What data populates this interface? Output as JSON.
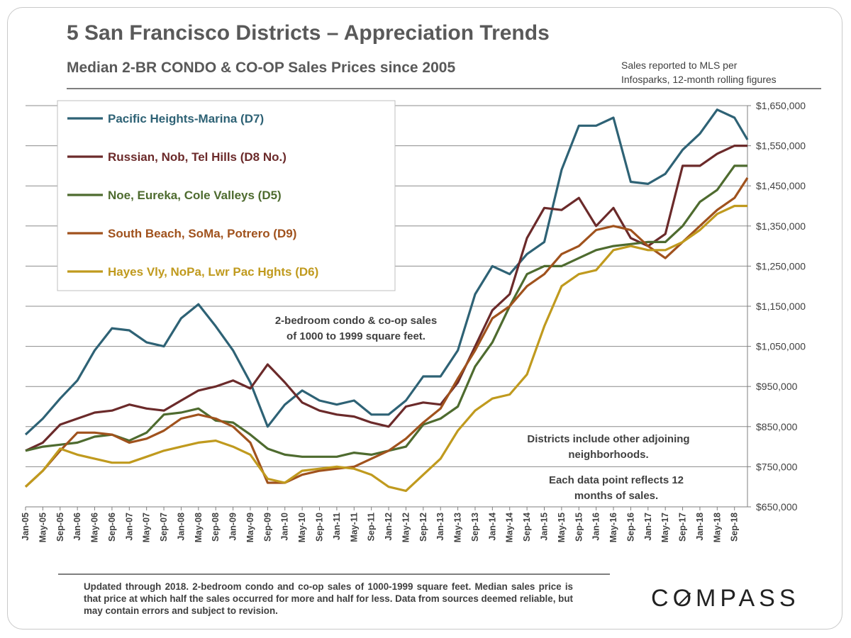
{
  "header": {
    "title": "5 San Francisco Districts – Appreciation Trends",
    "subtitle": "Median 2-BR CONDO & CO-OP Sales Prices since 2005",
    "source_line1": "Sales reported to MLS per",
    "source_line2": "Infosparks, 12-month rolling figures"
  },
  "annotations": {
    "size_note_line1": "2-bedroom condo & co-op sales",
    "size_note_line2": "of 1000 to 1999 square feet.",
    "districts_note_line1": "Districts include other adjoining",
    "districts_note_line2": "neighborhoods.",
    "datapoint_note_line1": "Each data point reflects 12",
    "datapoint_note_line2": "months of sales."
  },
  "footer": {
    "note": "Updated through 2018. 2-bedroom condo and co-op sales of 1000-1999 square feet. Median sales price is that price at which half the sales occurred for more and half for less. Data from sources deemed reliable, but may contain errors and subject to revision.",
    "logo": "COMPASS"
  },
  "chart_data": {
    "type": "line",
    "xlabel": "",
    "ylabel": "",
    "ylim": [
      650000,
      1650000
    ],
    "yticks": [
      650000,
      750000,
      850000,
      950000,
      1050000,
      1150000,
      1250000,
      1350000,
      1450000,
      1550000,
      1650000
    ],
    "ytick_labels": [
      "$650,000",
      "$750,000",
      "$850,000",
      "$950,000",
      "$1,050,000",
      "$1,150,000",
      "$1,250,000",
      "$1,350,000",
      "$1,450,000",
      "$1,550,000",
      "$1,650,000"
    ],
    "x_range": [
      "2005-01",
      "2018-12"
    ],
    "xtick_labels": [
      "Jan-05",
      "May-05",
      "Sep-05",
      "Jan-06",
      "May-06",
      "Sep-06",
      "Jan-07",
      "May-07",
      "Sep-07",
      "Jan-08",
      "May-08",
      "Sep-08",
      "Jan-09",
      "May-09",
      "Sep-09",
      "Jan-10",
      "May-10",
      "Sep-10",
      "Jan-11",
      "May-11",
      "Sep-11",
      "Jan-12",
      "May-12",
      "Sep-12",
      "Jan-13",
      "May-13",
      "Sep-13",
      "Jan-14",
      "May-14",
      "Sep-14",
      "Jan-15",
      "May-15",
      "Sep-15",
      "Jan-16",
      "May-16",
      "Sep-16",
      "Jan-17",
      "May-17",
      "Sep-17",
      "Jan-18",
      "May-18",
      "Sep-18"
    ],
    "grid": true,
    "legend_position": "top-left",
    "series": [
      {
        "name": "Pacific Heights-Marina (D7)",
        "color": "#2e6275",
        "points": [
          [
            "2005-01",
            830000
          ],
          [
            "2005-05",
            870000
          ],
          [
            "2005-09",
            920000
          ],
          [
            "2006-01",
            965000
          ],
          [
            "2006-05",
            1040000
          ],
          [
            "2006-09",
            1095000
          ],
          [
            "2007-01",
            1090000
          ],
          [
            "2007-05",
            1060000
          ],
          [
            "2007-09",
            1050000
          ],
          [
            "2008-01",
            1120000
          ],
          [
            "2008-05",
            1155000
          ],
          [
            "2008-09",
            1100000
          ],
          [
            "2009-01",
            1040000
          ],
          [
            "2009-05",
            960000
          ],
          [
            "2009-09",
            850000
          ],
          [
            "2010-01",
            905000
          ],
          [
            "2010-05",
            940000
          ],
          [
            "2010-09",
            915000
          ],
          [
            "2011-01",
            905000
          ],
          [
            "2011-05",
            915000
          ],
          [
            "2011-09",
            880000
          ],
          [
            "2012-01",
            880000
          ],
          [
            "2012-05",
            915000
          ],
          [
            "2012-09",
            975000
          ],
          [
            "2013-01",
            975000
          ],
          [
            "2013-05",
            1040000
          ],
          [
            "2013-09",
            1180000
          ],
          [
            "2014-01",
            1250000
          ],
          [
            "2014-05",
            1230000
          ],
          [
            "2014-09",
            1280000
          ],
          [
            "2015-01",
            1310000
          ],
          [
            "2015-05",
            1490000
          ],
          [
            "2015-09",
            1600000
          ],
          [
            "2016-01",
            1600000
          ],
          [
            "2016-05",
            1620000
          ],
          [
            "2016-09",
            1460000
          ],
          [
            "2017-01",
            1455000
          ],
          [
            "2017-05",
            1480000
          ],
          [
            "2017-09",
            1540000
          ],
          [
            "2018-01",
            1580000
          ],
          [
            "2018-05",
            1640000
          ],
          [
            "2018-09",
            1620000
          ],
          [
            "2018-12",
            1565000
          ]
        ]
      },
      {
        "name": "Russian, Nob, Tel Hills (D8 No.)",
        "color": "#6b2a2a",
        "points": [
          [
            "2005-01",
            790000
          ],
          [
            "2005-05",
            810000
          ],
          [
            "2005-09",
            855000
          ],
          [
            "2006-01",
            870000
          ],
          [
            "2006-05",
            885000
          ],
          [
            "2006-09",
            890000
          ],
          [
            "2007-01",
            905000
          ],
          [
            "2007-05",
            895000
          ],
          [
            "2007-09",
            890000
          ],
          [
            "2008-01",
            915000
          ],
          [
            "2008-05",
            940000
          ],
          [
            "2008-09",
            950000
          ],
          [
            "2009-01",
            965000
          ],
          [
            "2009-05",
            945000
          ],
          [
            "2009-09",
            1005000
          ],
          [
            "2010-01",
            960000
          ],
          [
            "2010-05",
            910000
          ],
          [
            "2010-09",
            890000
          ],
          [
            "2011-01",
            880000
          ],
          [
            "2011-05",
            875000
          ],
          [
            "2011-09",
            860000
          ],
          [
            "2012-01",
            850000
          ],
          [
            "2012-05",
            900000
          ],
          [
            "2012-09",
            910000
          ],
          [
            "2013-01",
            905000
          ],
          [
            "2013-05",
            960000
          ],
          [
            "2013-09",
            1050000
          ],
          [
            "2014-01",
            1140000
          ],
          [
            "2014-05",
            1180000
          ],
          [
            "2014-09",
            1320000
          ],
          [
            "2015-01",
            1395000
          ],
          [
            "2015-05",
            1390000
          ],
          [
            "2015-09",
            1420000
          ],
          [
            "2016-01",
            1350000
          ],
          [
            "2016-05",
            1395000
          ],
          [
            "2016-09",
            1320000
          ],
          [
            "2017-01",
            1300000
          ],
          [
            "2017-05",
            1330000
          ],
          [
            "2017-09",
            1500000
          ],
          [
            "2018-01",
            1500000
          ],
          [
            "2018-05",
            1530000
          ],
          [
            "2018-09",
            1550000
          ],
          [
            "2018-12",
            1550000
          ]
        ]
      },
      {
        "name": "Noe, Eureka, Cole Valleys (D5)",
        "color": "#4e6b2f",
        "points": [
          [
            "2005-01",
            790000
          ],
          [
            "2005-05",
            800000
          ],
          [
            "2005-09",
            805000
          ],
          [
            "2006-01",
            810000
          ],
          [
            "2006-05",
            825000
          ],
          [
            "2006-09",
            830000
          ],
          [
            "2007-01",
            815000
          ],
          [
            "2007-05",
            835000
          ],
          [
            "2007-09",
            880000
          ],
          [
            "2008-01",
            885000
          ],
          [
            "2008-05",
            895000
          ],
          [
            "2008-09",
            865000
          ],
          [
            "2009-01",
            860000
          ],
          [
            "2009-05",
            830000
          ],
          [
            "2009-09",
            795000
          ],
          [
            "2010-01",
            780000
          ],
          [
            "2010-05",
            775000
          ],
          [
            "2010-09",
            775000
          ],
          [
            "2011-01",
            775000
          ],
          [
            "2011-05",
            785000
          ],
          [
            "2011-09",
            780000
          ],
          [
            "2012-01",
            790000
          ],
          [
            "2012-05",
            800000
          ],
          [
            "2012-09",
            855000
          ],
          [
            "2013-01",
            870000
          ],
          [
            "2013-05",
            900000
          ],
          [
            "2013-09",
            1000000
          ],
          [
            "2014-01",
            1060000
          ],
          [
            "2014-05",
            1150000
          ],
          [
            "2014-09",
            1230000
          ],
          [
            "2015-01",
            1250000
          ],
          [
            "2015-05",
            1250000
          ],
          [
            "2015-09",
            1270000
          ],
          [
            "2016-01",
            1290000
          ],
          [
            "2016-05",
            1300000
          ],
          [
            "2016-09",
            1305000
          ],
          [
            "2017-01",
            1310000
          ],
          [
            "2017-05",
            1310000
          ],
          [
            "2017-09",
            1350000
          ],
          [
            "2018-01",
            1410000
          ],
          [
            "2018-05",
            1440000
          ],
          [
            "2018-09",
            1500000
          ],
          [
            "2018-12",
            1500000
          ]
        ]
      },
      {
        "name": "South Beach, SoMa, Potrero (D9)",
        "color": "#a0521d",
        "points": [
          [
            "2005-01",
            700000
          ],
          [
            "2005-05",
            740000
          ],
          [
            "2005-09",
            790000
          ],
          [
            "2006-01",
            835000
          ],
          [
            "2006-05",
            835000
          ],
          [
            "2006-09",
            830000
          ],
          [
            "2007-01",
            810000
          ],
          [
            "2007-05",
            820000
          ],
          [
            "2007-09",
            840000
          ],
          [
            "2008-01",
            870000
          ],
          [
            "2008-05",
            880000
          ],
          [
            "2008-09",
            870000
          ],
          [
            "2009-01",
            850000
          ],
          [
            "2009-05",
            810000
          ],
          [
            "2009-09",
            710000
          ],
          [
            "2010-01",
            710000
          ],
          [
            "2010-05",
            730000
          ],
          [
            "2010-09",
            740000
          ],
          [
            "2011-01",
            745000
          ],
          [
            "2011-05",
            750000
          ],
          [
            "2011-09",
            770000
          ],
          [
            "2012-01",
            790000
          ],
          [
            "2012-05",
            820000
          ],
          [
            "2012-09",
            860000
          ],
          [
            "2013-01",
            895000
          ],
          [
            "2013-05",
            970000
          ],
          [
            "2013-09",
            1040000
          ],
          [
            "2014-01",
            1120000
          ],
          [
            "2014-05",
            1150000
          ],
          [
            "2014-09",
            1200000
          ],
          [
            "2015-01",
            1230000
          ],
          [
            "2015-05",
            1280000
          ],
          [
            "2015-09",
            1300000
          ],
          [
            "2016-01",
            1340000
          ],
          [
            "2016-05",
            1350000
          ],
          [
            "2016-09",
            1340000
          ],
          [
            "2017-01",
            1300000
          ],
          [
            "2017-05",
            1270000
          ],
          [
            "2017-09",
            1310000
          ],
          [
            "2018-01",
            1350000
          ],
          [
            "2018-05",
            1390000
          ],
          [
            "2018-09",
            1420000
          ],
          [
            "2018-12",
            1470000
          ]
        ]
      },
      {
        "name": "Hayes Vly, NoPa, Lwr Pac Hghts (D6)",
        "color": "#c09a1e",
        "points": [
          [
            "2005-01",
            700000
          ],
          [
            "2005-05",
            740000
          ],
          [
            "2005-09",
            795000
          ],
          [
            "2006-01",
            780000
          ],
          [
            "2006-05",
            770000
          ],
          [
            "2006-09",
            760000
          ],
          [
            "2007-01",
            760000
          ],
          [
            "2007-05",
            775000
          ],
          [
            "2007-09",
            790000
          ],
          [
            "2008-01",
            800000
          ],
          [
            "2008-05",
            810000
          ],
          [
            "2008-09",
            815000
          ],
          [
            "2009-01",
            800000
          ],
          [
            "2009-05",
            780000
          ],
          [
            "2009-09",
            720000
          ],
          [
            "2010-01",
            710000
          ],
          [
            "2010-05",
            740000
          ],
          [
            "2010-09",
            745000
          ],
          [
            "2011-01",
            750000
          ],
          [
            "2011-05",
            745000
          ],
          [
            "2011-09",
            730000
          ],
          [
            "2012-01",
            700000
          ],
          [
            "2012-05",
            690000
          ],
          [
            "2012-09",
            730000
          ],
          [
            "2013-01",
            770000
          ],
          [
            "2013-05",
            840000
          ],
          [
            "2013-09",
            890000
          ],
          [
            "2014-01",
            920000
          ],
          [
            "2014-05",
            930000
          ],
          [
            "2014-09",
            980000
          ],
          [
            "2015-01",
            1100000
          ],
          [
            "2015-05",
            1200000
          ],
          [
            "2015-09",
            1230000
          ],
          [
            "2016-01",
            1240000
          ],
          [
            "2016-05",
            1290000
          ],
          [
            "2016-09",
            1300000
          ],
          [
            "2017-01",
            1290000
          ],
          [
            "2017-05",
            1290000
          ],
          [
            "2017-09",
            1310000
          ],
          [
            "2018-01",
            1340000
          ],
          [
            "2018-05",
            1380000
          ],
          [
            "2018-09",
            1400000
          ],
          [
            "2018-12",
            1400000
          ]
        ]
      }
    ]
  }
}
